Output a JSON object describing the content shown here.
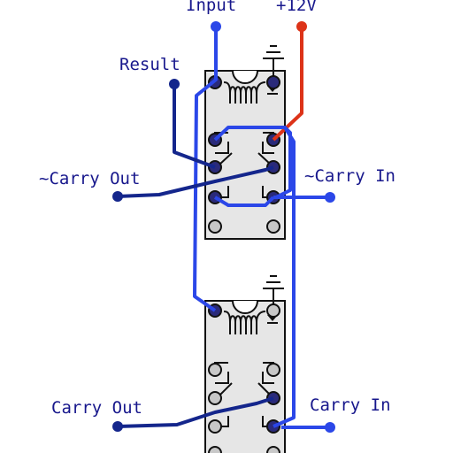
{
  "labels": {
    "input": "Input",
    "plus12v": "+12V",
    "result": "Result",
    "not_carry_out": "~Carry Out",
    "not_carry_in": "~Carry In",
    "carry_out": "Carry Out",
    "carry_in": "Carry In"
  },
  "colors": {
    "wire_light": "#2b47e8",
    "wire_dark": "#14268c",
    "wire_power": "#dd3318",
    "relay_body": "#e6e6e6",
    "label_text": "#17178c"
  },
  "icons": {
    "ground": "ground-icon",
    "coil": "relay-coil-icon",
    "diode": "diode-icon"
  }
}
